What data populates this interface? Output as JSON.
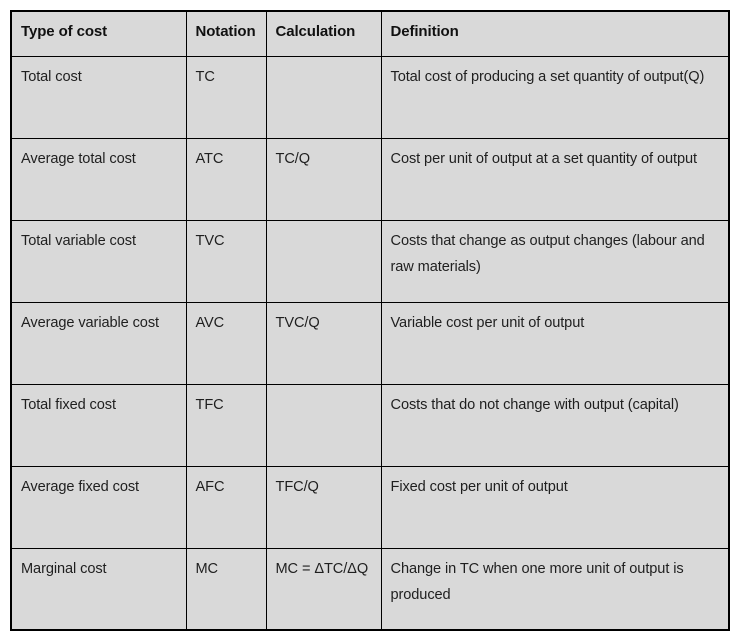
{
  "colors": {
    "cell_background": "#d9d9d9",
    "border": "#000000",
    "text": "#1f1f1f",
    "page_background": "#ffffff"
  },
  "table": {
    "headers": [
      "Type of cost",
      "Notation",
      "Calculation",
      "Definition"
    ],
    "rows": [
      {
        "type": "Total cost",
        "notation": "TC",
        "calculation": "",
        "definition": "Total cost of producing a set quantity of output(Q)"
      },
      {
        "type": "Average total cost",
        "notation": "ATC",
        "calculation": "TC/Q",
        "definition": "Cost per unit of output at a set quantity of output"
      },
      {
        "type": "Total variable cost",
        "notation": "TVC",
        "calculation": "",
        "definition": "Costs that change as output changes (labour and raw materials)"
      },
      {
        "type": "Average variable cost",
        "notation": "AVC",
        "calculation": "TVC/Q",
        "definition": "Variable cost per unit of output"
      },
      {
        "type": "Total fixed cost",
        "notation": "TFC",
        "calculation": "",
        "definition": "Costs that do not change with output (capital)"
      },
      {
        "type": "Average fixed cost",
        "notation": "AFC",
        "calculation": "TFC/Q",
        "definition": "Fixed cost per unit of output"
      },
      {
        "type": "Marginal cost",
        "notation": "MC",
        "calculation": "MC = ΔTC/ΔQ",
        "definition": "Change in TC when one more unit of output is produced"
      }
    ]
  }
}
